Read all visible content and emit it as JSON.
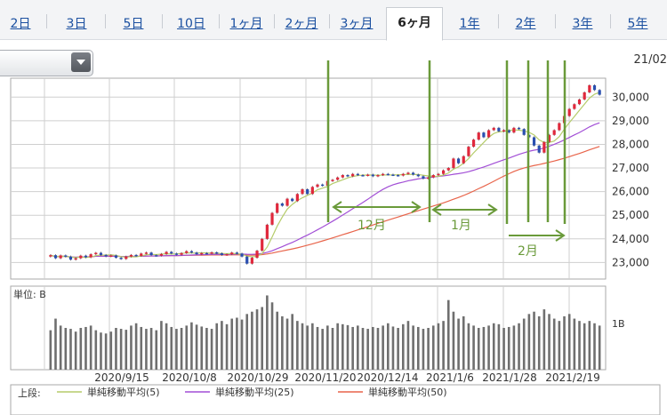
{
  "tabs": [
    {
      "label": "2日"
    },
    {
      "label": "3日"
    },
    {
      "label": "5日"
    },
    {
      "label": "10日"
    },
    {
      "label": "1ヶ月"
    },
    {
      "label": "2ヶ月"
    },
    {
      "label": "3ヶ月"
    },
    {
      "label": "6ヶ月",
      "active": true
    },
    {
      "label": "1年"
    },
    {
      "label": "2年"
    },
    {
      "label": "3年"
    },
    {
      "label": "5年"
    }
  ],
  "header": {
    "date_fragment": "21/02"
  },
  "dropdown": {
    "icon": "chevron-down-icon"
  },
  "chart_data": {
    "type": "line",
    "price_axis": {
      "ticks": [
        23000,
        24000,
        25000,
        26000,
        27000,
        28000,
        29000,
        30000
      ],
      "tick_labels": [
        "23,000",
        "24,000",
        "25,000",
        "26,000",
        "27,000",
        "28,000",
        "29,000",
        "30,000"
      ],
      "ylim": [
        22300,
        30800
      ]
    },
    "x_tick_labels": [
      "2020/9/15",
      "2020/10/8",
      "2020/10/29",
      "2020/11/20",
      "2020/12/14",
      "2021/1/6",
      "2021/1/28",
      "2021/2/19"
    ],
    "volume_panel": {
      "unit_label": "単位: B",
      "tick_labels": [
        "1B"
      ],
      "ylim": [
        0,
        1.8
      ]
    },
    "legend_prefix": "上段:",
    "legend": [
      {
        "name": "単純移動平均(5)",
        "color": "#b5cc6a"
      },
      {
        "name": "単純移動平均(25)",
        "color": "#a24fd6"
      },
      {
        "name": "単純移動平均(50)",
        "color": "#e8644a"
      }
    ],
    "colors": {
      "up": "#e0283c",
      "down": "#2a4fb0",
      "volume": "#6f6f6f",
      "annotation": "#6a9a3a",
      "grid": "#cfcfcf"
    },
    "annotations": [
      {
        "text": "12月"
      },
      {
        "text": "1月"
      },
      {
        "text": "2月"
      }
    ],
    "sessions": [
      [
        23250,
        23310
      ],
      [
        23310,
        23180
      ],
      [
        23180,
        23300
      ],
      [
        23300,
        23250
      ],
      [
        23250,
        23120
      ],
      [
        23120,
        23180
      ],
      [
        23180,
        23290
      ],
      [
        23290,
        23220
      ],
      [
        23220,
        23350
      ],
      [
        23350,
        23410
      ],
      [
        23410,
        23320
      ],
      [
        23320,
        23260
      ],
      [
        23260,
        23300
      ],
      [
        23300,
        23200
      ],
      [
        23200,
        23150
      ],
      [
        23150,
        23250
      ],
      [
        23250,
        23320
      ],
      [
        23320,
        23280
      ],
      [
        23280,
        23380
      ],
      [
        23380,
        23420
      ],
      [
        23420,
        23310
      ],
      [
        23310,
        23290
      ],
      [
        23290,
        23360
      ],
      [
        23360,
        23450
      ],
      [
        23450,
        23380
      ],
      [
        23380,
        23330
      ],
      [
        23330,
        23400
      ],
      [
        23400,
        23480
      ],
      [
        23480,
        23420
      ],
      [
        23420,
        23350
      ],
      [
        23350,
        23400
      ],
      [
        23400,
        23380
      ],
      [
        23380,
        23430
      ],
      [
        23430,
        23390
      ],
      [
        23390,
        23320
      ],
      [
        23320,
        23350
      ],
      [
        23350,
        23420
      ],
      [
        23420,
        23380
      ],
      [
        23380,
        23250
      ],
      [
        23250,
        22950
      ],
      [
        22950,
        23200
      ],
      [
        23200,
        23500
      ],
      [
        23500,
        24000
      ],
      [
        24000,
        24600
      ],
      [
        24600,
        25100
      ],
      [
        25100,
        25500
      ],
      [
        25500,
        25400
      ],
      [
        25400,
        25700
      ],
      [
        25700,
        25600
      ],
      [
        25600,
        25900
      ],
      [
        25900,
        26100
      ],
      [
        26100,
        25900
      ],
      [
        25900,
        26200
      ],
      [
        26200,
        26300
      ],
      [
        26300,
        26250
      ],
      [
        26250,
        26450
      ],
      [
        26450,
        26500
      ],
      [
        26500,
        26600
      ],
      [
        26600,
        26700
      ],
      [
        26700,
        26650
      ],
      [
        26650,
        26750
      ],
      [
        26750,
        26700
      ],
      [
        26700,
        26680
      ],
      [
        26680,
        26720
      ],
      [
        26720,
        26650
      ],
      [
        26650,
        26700
      ],
      [
        26700,
        26750
      ],
      [
        26750,
        26720
      ],
      [
        26720,
        26700
      ],
      [
        26700,
        26680
      ],
      [
        26680,
        26750
      ],
      [
        26750,
        26800
      ],
      [
        26800,
        26720
      ],
      [
        26720,
        26650
      ],
      [
        26650,
        26550
      ],
      [
        26550,
        26600
      ],
      [
        26600,
        26700
      ],
      [
        26700,
        26750
      ],
      [
        26750,
        26900
      ],
      [
        26900,
        27000
      ],
      [
        27000,
        27400
      ],
      [
        27400,
        27200
      ],
      [
        27200,
        27500
      ],
      [
        27500,
        27900
      ],
      [
        27900,
        28200
      ],
      [
        28200,
        28500
      ],
      [
        28500,
        28300
      ],
      [
        28300,
        28600
      ],
      [
        28600,
        28700
      ],
      [
        28700,
        28550
      ],
      [
        28550,
        28600
      ],
      [
        28600,
        28500
      ],
      [
        28500,
        28700
      ],
      [
        28700,
        28650
      ],
      [
        28650,
        28400
      ],
      [
        28400,
        28300
      ],
      [
        28300,
        27950
      ],
      [
        27950,
        27650
      ],
      [
        27650,
        28100
      ],
      [
        28100,
        28400
      ],
      [
        28400,
        28600
      ],
      [
        28600,
        28900
      ],
      [
        28900,
        29200
      ],
      [
        29200,
        29500
      ],
      [
        29500,
        29700
      ],
      [
        29700,
        29900
      ],
      [
        29900,
        30200
      ],
      [
        30200,
        30500
      ],
      [
        30500,
        30300
      ],
      [
        30300,
        30100
      ]
    ],
    "volume": [
      0.85,
      1.1,
      0.95,
      0.9,
      0.88,
      0.82,
      0.9,
      0.92,
      0.95,
      0.85,
      0.8,
      0.78,
      0.82,
      0.9,
      0.88,
      0.86,
      0.95,
      1.0,
      0.92,
      0.88,
      0.9,
      0.85,
      1.05,
      1.0,
      0.92,
      0.88,
      0.9,
      0.95,
      1.02,
      0.97,
      0.93,
      0.9,
      0.88,
      1.0,
      1.05,
      0.98,
      1.1,
      1.12,
      1.08,
      1.2,
      1.25,
      1.3,
      1.35,
      1.6,
      1.45,
      1.25,
      1.15,
      1.1,
      1.2,
      1.05,
      1.0,
      0.95,
      1.0,
      0.92,
      0.88,
      0.95,
      0.9,
      1.0,
      0.98,
      0.96,
      0.92,
      0.95,
      0.9,
      0.88,
      0.92,
      0.9,
      0.95,
      1.0,
      0.93,
      0.9,
      0.98,
      1.05,
      0.95,
      0.92,
      0.88,
      0.9,
      0.95,
      1.0,
      1.05,
      1.5,
      1.25,
      1.1,
      1.15,
      1.0,
      0.95,
      0.9,
      0.92,
      0.95,
      1.0,
      0.98,
      0.9,
      0.92,
      0.95,
      1.0,
      1.1,
      1.2,
      1.25,
      1.15,
      1.3,
      1.2,
      1.1,
      1.05,
      1.15,
      1.2,
      1.1,
      1.05,
      1.0,
      1.05,
      1.0,
      0.95
    ]
  }
}
